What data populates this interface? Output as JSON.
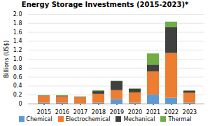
{
  "chart_data": {
    "type": "bar",
    "stacked": true,
    "title": "Energy Storage Investments (2015-2023)*",
    "ylabel": "Billions (US$)",
    "categories": [
      "2015",
      "2016",
      "2017",
      "2018",
      "2019",
      "2020",
      "2021",
      "2022",
      "2023"
    ],
    "series": [
      {
        "name": "Chemical",
        "color": "#5b9bd5",
        "values": [
          0.02,
          0.02,
          0.01,
          0.02,
          0.1,
          0.02,
          0.2,
          0.13,
          0.02
        ]
      },
      {
        "name": "Electrochemical",
        "color": "#ed7d31",
        "values": [
          0.15,
          0.14,
          0.13,
          0.2,
          0.2,
          0.23,
          0.52,
          1.0,
          0.22
        ]
      },
      {
        "name": "Mechanical",
        "color": "#404040",
        "values": [
          0.01,
          0.01,
          0.01,
          0.06,
          0.2,
          0.08,
          0.15,
          0.58,
          0.05
        ]
      },
      {
        "name": "Thermal",
        "color": "#70ad47",
        "values": [
          0.01,
          0.02,
          0.01,
          0.02,
          0.01,
          0.01,
          0.25,
          0.12,
          0.01
        ]
      }
    ],
    "ylim": [
      0,
      2.0
    ],
    "yticks": [
      0,
      0.2,
      0.4,
      0.6,
      0.8,
      {
        "value": 1.0,
        "label": "1.0"
      },
      1.2,
      1.4,
      1.6,
      1.8,
      {
        "value": 2.0,
        "label": "2.0"
      }
    ],
    "grid": true,
    "legend": "bottom"
  }
}
